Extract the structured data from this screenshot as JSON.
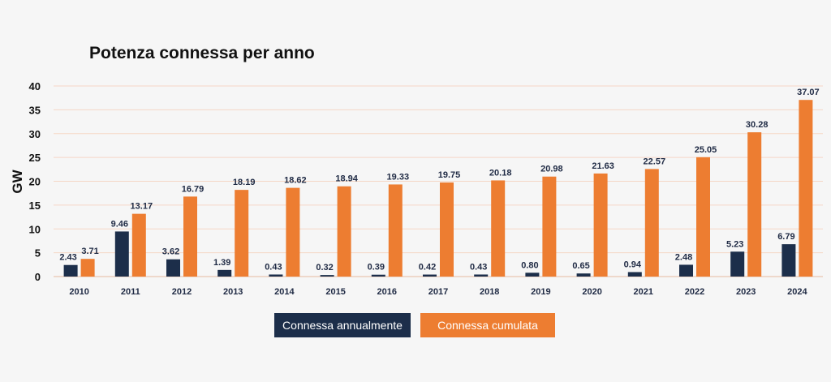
{
  "chart_data": {
    "type": "bar",
    "title": "Potenza connessa per anno",
    "xlabel": "",
    "ylabel": "GW",
    "ylim": [
      0,
      40
    ],
    "yticks": [
      0,
      5,
      10,
      15,
      20,
      25,
      30,
      35,
      40
    ],
    "grid": true,
    "legend_position": "bottom",
    "categories": [
      "2010",
      "2011",
      "2012",
      "2013",
      "2014",
      "2015",
      "2016",
      "2017",
      "2018",
      "2019",
      "2020",
      "2021",
      "2022",
      "2023",
      "2024"
    ],
    "series": [
      {
        "name": "Connessa annualmente",
        "color": "#1c2e4a",
        "values": [
          2.43,
          9.46,
          3.62,
          1.39,
          0.43,
          0.32,
          0.39,
          0.42,
          0.43,
          0.8,
          0.65,
          0.94,
          2.48,
          5.23,
          6.79
        ],
        "labels": [
          "2.43",
          "9.46",
          "3.62",
          "1.39",
          "0.43",
          "0.32",
          "0.39",
          "0.42",
          "0.43",
          "0.80",
          "0.65",
          "0.94",
          "2.48",
          "5.23",
          "6.79"
        ]
      },
      {
        "name": "Connessa cumulata",
        "color": "#ed7d31",
        "values": [
          3.71,
          13.17,
          16.79,
          18.19,
          18.62,
          18.94,
          19.33,
          19.75,
          20.18,
          20.98,
          21.63,
          22.57,
          25.05,
          30.28,
          37.07
        ],
        "labels": [
          "3.71",
          "13.17",
          "16.79",
          "18.19",
          "18.62",
          "18.94",
          "19.33",
          "19.75",
          "20.18",
          "20.98",
          "21.63",
          "22.57",
          "25.05",
          "30.28",
          "37.07"
        ]
      }
    ]
  }
}
